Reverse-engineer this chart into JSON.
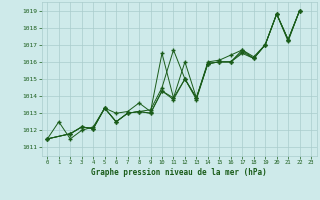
{
  "title": "Graphe pression niveau de la mer (hPa)",
  "bg_color": "#ceeaea",
  "grid_color": "#aacccc",
  "line_color": "#1a5c1a",
  "xlim": [
    -0.5,
    23.5
  ],
  "ylim": [
    1010.5,
    1019.5
  ],
  "yticks": [
    1011,
    1012,
    1013,
    1014,
    1015,
    1016,
    1017,
    1018,
    1019
  ],
  "xticks": [
    0,
    1,
    2,
    3,
    4,
    5,
    6,
    7,
    8,
    9,
    10,
    11,
    12,
    13,
    14,
    15,
    16,
    17,
    18,
    19,
    20,
    21,
    22,
    23
  ],
  "series": [
    [
      1011.5,
      1012.5,
      1011.5,
      1012.0,
      1012.2,
      1013.3,
      1013.0,
      1013.1,
      1013.6,
      1013.1,
      1016.5,
      1013.9,
      1016.0,
      1013.9,
      1016.0,
      1016.1,
      1016.4,
      1016.7,
      1016.3,
      1017.0,
      1018.8,
      1017.3,
      1019.0,
      null
    ],
    [
      1011.5,
      null,
      1011.8,
      1012.2,
      1012.1,
      1013.3,
      1012.5,
      1013.0,
      1013.1,
      1013.2,
      1014.5,
      1016.7,
      1015.0,
      1013.9,
      1015.9,
      1016.0,
      1016.0,
      1016.7,
      1016.2,
      1017.0,
      1018.8,
      1017.3,
      1019.0,
      null
    ],
    [
      1011.5,
      null,
      1011.8,
      1012.2,
      1012.1,
      1013.3,
      1012.5,
      1013.0,
      1013.1,
      1013.0,
      1014.3,
      1013.9,
      1015.0,
      1013.8,
      1015.9,
      1016.0,
      1016.0,
      1016.6,
      1016.2,
      1017.0,
      1018.8,
      1017.3,
      1019.0,
      null
    ],
    [
      1011.5,
      null,
      1011.8,
      1012.2,
      1012.1,
      1013.3,
      1012.5,
      1013.0,
      1013.1,
      1013.0,
      1014.3,
      1013.8,
      1015.0,
      1013.9,
      1015.9,
      1016.0,
      1016.0,
      1016.5,
      1016.2,
      1017.0,
      1018.8,
      1017.2,
      1019.0,
      null
    ]
  ]
}
